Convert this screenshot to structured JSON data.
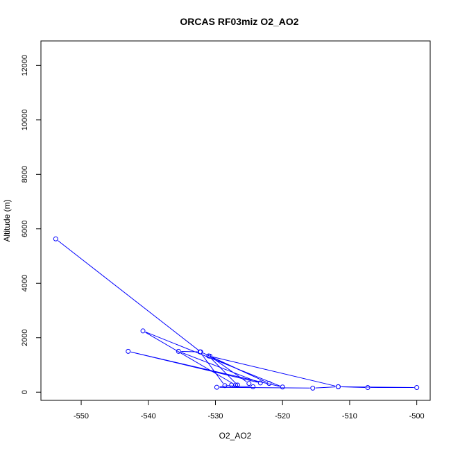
{
  "chart_data": {
    "type": "line",
    "title": "ORCAS RF03miz O2_AO2",
    "xlabel": "O2_AO2",
    "ylabel": "Altitude (m)",
    "xlim": [
      -556,
      -498
    ],
    "ylim": [
      -300,
      12900
    ],
    "xticks": [
      -550,
      -540,
      -530,
      -520,
      -510,
      -500
    ],
    "yticks": [
      0,
      2000,
      4000,
      6000,
      8000,
      10000,
      12000
    ],
    "grid": false,
    "markers": "open-circle",
    "line_color": "#0000ff",
    "series": [
      {
        "x": [
          -553.8,
          -532.2,
          -522,
          -531,
          -526.7,
          -527.6,
          -529.8,
          -515.5,
          -511.7,
          -500.0,
          -507.3,
          -511.7,
          -530.8,
          -525.0,
          -524.4,
          -528.6,
          -532.3,
          -535.5,
          -523.3,
          -543.0,
          -520.0,
          -540.8,
          -527.0
        ],
        "y": [
          5630,
          1480,
          320,
          1330,
          260,
          260,
          180,
          150,
          200,
          170,
          170,
          200,
          1320,
          320,
          200,
          240,
          1480,
          1500,
          340,
          1500,
          190,
          2250,
          260
        ]
      }
    ]
  }
}
